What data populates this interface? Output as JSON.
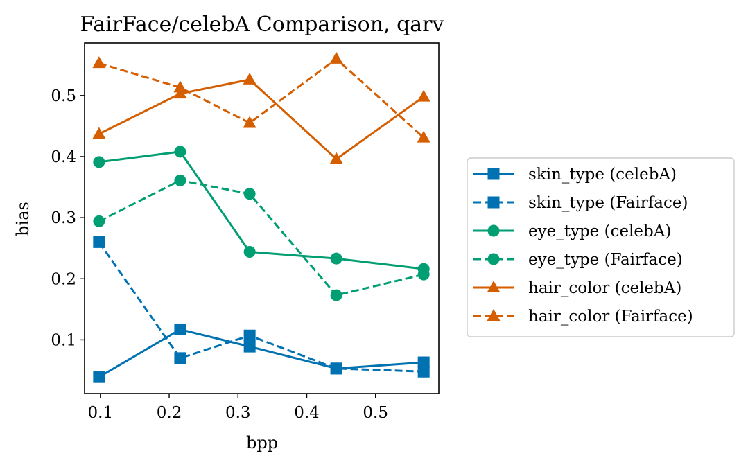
{
  "chart_data": {
    "type": "line",
    "title": "FairFace/celebA Comparison, qarv",
    "xlabel": "bpp",
    "ylabel": "bias",
    "xlim": [
      0.077,
      0.592
    ],
    "ylim": [
      0.012,
      0.586
    ],
    "xticks": [
      0.1,
      0.2,
      0.3,
      0.4,
      0.5
    ],
    "xtick_labels": [
      "0.1",
      "0.2",
      "0.3",
      "0.4",
      "0.5"
    ],
    "yticks": [
      0.1,
      0.2,
      0.3,
      0.4,
      0.5
    ],
    "ytick_labels": [
      "0.1",
      "0.2",
      "0.3",
      "0.4",
      "0.5"
    ],
    "grid": false,
    "legend_position": "outside-right",
    "series": [
      {
        "name": "skin_type (celebA)",
        "color": "#0072b2",
        "linestyle": "solid",
        "marker": "square",
        "x": [
          0.098,
          0.216,
          0.317,
          0.443,
          0.57
        ],
        "y": [
          0.039,
          0.117,
          0.089,
          0.053,
          0.063
        ]
      },
      {
        "name": "skin_type (Fairface)",
        "color": "#0072b2",
        "linestyle": "dashed",
        "marker": "square",
        "x": [
          0.098,
          0.216,
          0.317,
          0.443,
          0.57
        ],
        "y": [
          0.26,
          0.07,
          0.107,
          0.053,
          0.048
        ]
      },
      {
        "name": "eye_type (celebA)",
        "color": "#009e73",
        "linestyle": "solid",
        "marker": "circle",
        "x": [
          0.098,
          0.216,
          0.317,
          0.443,
          0.57
        ],
        "y": [
          0.391,
          0.408,
          0.244,
          0.233,
          0.216
        ]
      },
      {
        "name": "eye_type (Fairface)",
        "color": "#009e73",
        "linestyle": "dashed",
        "marker": "circle",
        "x": [
          0.098,
          0.216,
          0.317,
          0.443,
          0.57
        ],
        "y": [
          0.294,
          0.361,
          0.339,
          0.173,
          0.207
        ]
      },
      {
        "name": "hair_color (celebA)",
        "color": "#d55e00",
        "linestyle": "solid",
        "marker": "triangle",
        "x": [
          0.098,
          0.216,
          0.317,
          0.443,
          0.57
        ],
        "y": [
          0.437,
          0.503,
          0.526,
          0.396,
          0.498
        ]
      },
      {
        "name": "hair_color (Fairface)",
        "color": "#d55e00",
        "linestyle": "dashed",
        "marker": "triangle",
        "x": [
          0.098,
          0.216,
          0.317,
          0.443,
          0.57
        ],
        "y": [
          0.553,
          0.513,
          0.455,
          0.56,
          0.431
        ]
      }
    ]
  }
}
